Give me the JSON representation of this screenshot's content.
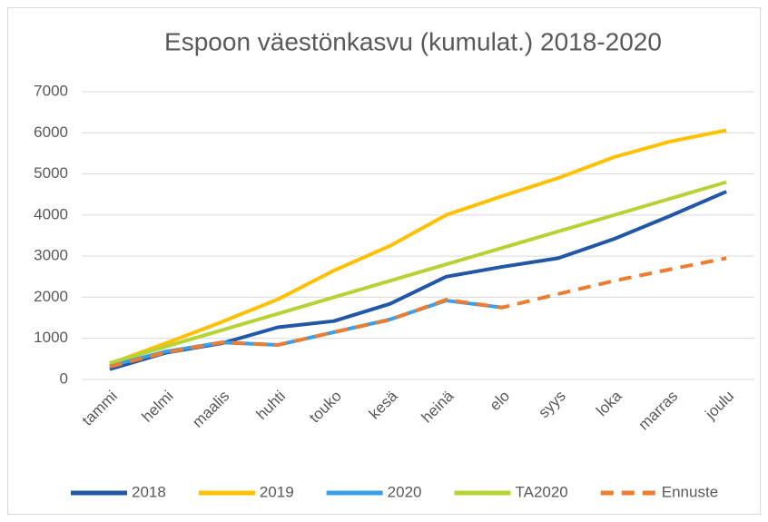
{
  "chart_data": {
    "type": "line",
    "title": "Espoon väestönkasvu (kumulat.) 2018-2020",
    "categories": [
      "tammi",
      "helmi",
      "maalis",
      "huhti",
      "touko",
      "kesä",
      "heinä",
      "elo",
      "syys",
      "loka",
      "marras",
      "joulu"
    ],
    "series": [
      {
        "name": "2018",
        "color": "#2157a6",
        "values": [
          250,
          650,
          880,
          1270,
          1420,
          1840,
          2500,
          2740,
          2950,
          3420,
          3980,
          4570
        ]
      },
      {
        "name": "2019",
        "color": "#ffc000",
        "values": [
          380,
          880,
          1400,
          1950,
          2650,
          3250,
          4000,
          4460,
          4900,
          5410,
          5790,
          6060
        ]
      },
      {
        "name": "2020",
        "color": "#3a9fe6",
        "values": [
          330,
          680,
          900,
          840,
          1150,
          1460,
          1920,
          1750,
          null,
          null,
          null,
          null
        ]
      },
      {
        "name": "TA2020",
        "color": "#b5d334",
        "values": [
          400,
          800,
          1200,
          1600,
          2000,
          2400,
          2800,
          3200,
          3600,
          4000,
          4400,
          4800
        ]
      },
      {
        "name": "Ennuste",
        "color": "#ed7d31",
        "dashed": true,
        "values": [
          310,
          660,
          900,
          840,
          1150,
          1450,
          1940,
          1750,
          2080,
          2400,
          2680,
          2950
        ]
      }
    ],
    "ylim": [
      0,
      7000
    ],
    "yticks": [
      0,
      1000,
      2000,
      3000,
      4000,
      5000,
      6000,
      7000
    ],
    "grid": true,
    "legend": "bottom"
  }
}
